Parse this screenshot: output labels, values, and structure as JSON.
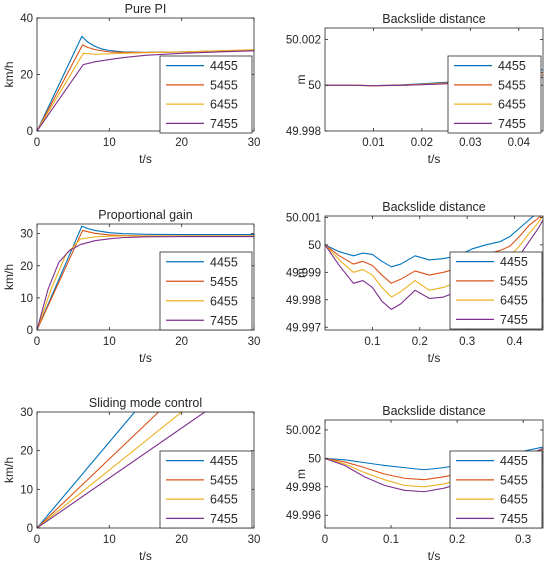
{
  "colors": {
    "4455": "#0072BD",
    "5455": "#D95319",
    "6455": "#EDB120",
    "7455": "#7E2F8E"
  },
  "chart_data": [
    {
      "type": "line",
      "title": "Pure PI",
      "xlabel": "t/s",
      "ylabel": "km/h",
      "xlim": [
        0,
        30
      ],
      "ylim": [
        0,
        40
      ],
      "xticks": [
        0,
        10,
        20,
        30
      ],
      "xtick_labels": [
        "0",
        "10",
        "20",
        "30"
      ],
      "yticks": [
        0,
        20,
        40
      ],
      "ytick_labels": [
        "0",
        "20",
        "40"
      ],
      "legend": "right",
      "series": [
        {
          "name": "4455",
          "x": [
            0,
            6.2,
            7,
            8,
            9,
            10,
            12,
            15,
            20,
            25,
            30
          ],
          "y": [
            0,
            33.5,
            31.5,
            30.0,
            29.0,
            28.5,
            28.0,
            27.8,
            28.0,
            28.3,
            28.6
          ]
        },
        {
          "name": "5455",
          "x": [
            0,
            6.3,
            7,
            8,
            10,
            12,
            15,
            20,
            25,
            30
          ],
          "y": [
            0,
            30.5,
            29.6,
            28.8,
            28.0,
            27.8,
            27.8,
            28.0,
            28.3,
            28.7
          ]
        },
        {
          "name": "6455",
          "x": [
            0,
            6.4,
            8,
            10,
            12,
            15,
            20,
            25,
            30
          ],
          "y": [
            0,
            27.5,
            27.2,
            27.3,
            27.5,
            27.7,
            28.0,
            28.4,
            28.8
          ]
        },
        {
          "name": "7455",
          "x": [
            0,
            6.4,
            8,
            10,
            12,
            15,
            20,
            25,
            30
          ],
          "y": [
            0,
            23.5,
            24.5,
            25.3,
            26.0,
            26.8,
            27.5,
            28.0,
            28.4
          ]
        }
      ]
    },
    {
      "type": "line",
      "title": "Backslide distance",
      "xlabel": "t/s",
      "ylabel": "m",
      "xlim": [
        0,
        0.045
      ],
      "ylim": [
        49.998,
        50.0025
      ],
      "xticks": [
        0.01,
        0.02,
        0.03,
        0.04
      ],
      "xtick_labels": [
        "0.01",
        "0.02",
        "0.03",
        "0.04"
      ],
      "yticks": [
        49.998,
        50,
        50.002
      ],
      "ytick_labels": [
        "49.998",
        "50",
        "50.002"
      ],
      "legend": "right",
      "series": [
        {
          "name": "4455",
          "x": [
            0,
            0.005,
            0.01,
            0.015,
            0.02,
            0.025,
            0.03,
            0.035,
            0.04,
            0.045
          ],
          "y": [
            50.0,
            50.0,
            49.99998,
            50.00001,
            50.00006,
            50.00013,
            50.00022,
            50.00034,
            50.0005,
            50.00068
          ]
        },
        {
          "name": "5455",
          "x": [
            0,
            0.005,
            0.01,
            0.015,
            0.02,
            0.025,
            0.03,
            0.035,
            0.04,
            0.045
          ],
          "y": [
            50.0,
            50.0,
            49.99998,
            50.0,
            50.00004,
            50.0001,
            50.00018,
            50.00028,
            50.00041,
            50.00056
          ]
        },
        {
          "name": "6455",
          "x": [
            0,
            0.005,
            0.01,
            0.015,
            0.02,
            0.025,
            0.03,
            0.035,
            0.04,
            0.045
          ],
          "y": [
            50.0,
            50.0,
            49.99998,
            49.99999,
            50.00003,
            50.00008,
            50.00014,
            50.00022,
            50.00032,
            50.00044
          ]
        },
        {
          "name": "7455",
          "x": [
            0,
            0.005,
            0.01,
            0.015,
            0.02,
            0.025,
            0.03,
            0.035,
            0.04,
            0.045
          ],
          "y": [
            50.0,
            50.0,
            49.99998,
            49.99999,
            50.00002,
            50.00006,
            50.00011,
            50.00017,
            50.00025,
            50.00034
          ]
        }
      ]
    },
    {
      "type": "line",
      "title": "Proportional gain",
      "xlabel": "t/s",
      "ylabel": "km/h",
      "xlim": [
        0,
        30
      ],
      "ylim": [
        0,
        33
      ],
      "xticks": [
        0,
        10,
        20,
        30
      ],
      "xtick_labels": [
        "0",
        "10",
        "20",
        "30"
      ],
      "yticks": [
        0,
        10,
        20,
        30
      ],
      "ytick_labels": [
        "0",
        "10",
        "20",
        "30"
      ],
      "legend": "right",
      "series": [
        {
          "name": "4455",
          "x": [
            0,
            6.2,
            7,
            8,
            10,
            12,
            15,
            20,
            25,
            30
          ],
          "y": [
            0,
            32.3,
            31.6,
            31.0,
            30.3,
            30.0,
            29.8,
            29.7,
            29.7,
            29.7
          ]
        },
        {
          "name": "5455",
          "x": [
            0,
            6.3,
            7,
            8,
            10,
            12,
            15,
            20,
            25,
            30
          ],
          "y": [
            0,
            31.0,
            30.6,
            30.1,
            29.6,
            29.4,
            29.3,
            29.3,
            29.3,
            29.3
          ]
        },
        {
          "name": "6455",
          "x": [
            0,
            2,
            4,
            6,
            8,
            10,
            12,
            15,
            20,
            25,
            30
          ],
          "y": [
            0,
            13.0,
            23.5,
            28.3,
            29.0,
            29.2,
            29.3,
            29.3,
            29.3,
            29.3,
            29.3
          ]
        },
        {
          "name": "7455",
          "x": [
            0,
            1.5,
            3,
            4.5,
            6,
            8,
            10,
            12,
            15,
            20,
            25,
            30
          ],
          "y": [
            0,
            12.5,
            21.0,
            24.8,
            26.6,
            27.8,
            28.4,
            28.8,
            29.0,
            29.1,
            29.1,
            29.1
          ]
        }
      ]
    },
    {
      "type": "line",
      "title": "Backslide distance",
      "xlabel": "t/s",
      "ylabel": "m",
      "xlim": [
        0,
        0.46
      ],
      "ylim": [
        49.9969,
        50.00105
      ],
      "xticks": [
        0.1,
        0.2,
        0.3,
        0.4
      ],
      "xtick_labels": [
        "0.1",
        "0.2",
        "0.3",
        "0.4"
      ],
      "yticks": [
        49.997,
        49.998,
        49.999,
        50,
        50.001
      ],
      "ytick_labels": [
        "49.997",
        "49.998",
        "49.999",
        "50",
        "50.001"
      ],
      "legend": "lower-right",
      "series": [
        {
          "name": "4455",
          "x": [
            0,
            0.03,
            0.06,
            0.08,
            0.1,
            0.12,
            0.14,
            0.16,
            0.19,
            0.22,
            0.25,
            0.28,
            0.31,
            0.34,
            0.37,
            0.39,
            0.41,
            0.43,
            0.44
          ],
          "y": [
            50.0,
            49.99975,
            49.9996,
            49.9997,
            49.99965,
            49.9994,
            49.9992,
            49.9993,
            49.9996,
            49.99945,
            49.9995,
            49.9996,
            49.99985,
            50.0,
            50.00012,
            50.0003,
            50.0006,
            50.0009,
            50.00105
          ]
        },
        {
          "name": "5455",
          "x": [
            0,
            0.03,
            0.06,
            0.08,
            0.1,
            0.12,
            0.14,
            0.16,
            0.19,
            0.22,
            0.25,
            0.28,
            0.31,
            0.34,
            0.37,
            0.39,
            0.41,
            0.43,
            0.445,
            0.455
          ],
          "y": [
            50.0,
            49.9996,
            49.9993,
            49.9994,
            49.99925,
            49.9989,
            49.9986,
            49.99875,
            49.99905,
            49.9989,
            49.999,
            49.99915,
            49.99945,
            49.99965,
            49.9998,
            49.99995,
            50.0003,
            50.0007,
            50.0009,
            50.00105
          ]
        },
        {
          "name": "6455",
          "x": [
            0,
            0.03,
            0.06,
            0.08,
            0.1,
            0.12,
            0.14,
            0.16,
            0.19,
            0.22,
            0.25,
            0.28,
            0.31,
            0.34,
            0.37,
            0.39,
            0.41,
            0.43,
            0.445,
            0.46
          ],
          "y": [
            50.0,
            49.99945,
            49.999,
            49.9991,
            49.9989,
            49.99845,
            49.9981,
            49.9983,
            49.9987,
            49.99835,
            49.99845,
            49.99865,
            49.999,
            49.9992,
            49.9994,
            49.9996,
            49.99995,
            50.0004,
            50.0007,
            50.00105
          ]
        },
        {
          "name": "7455",
          "x": [
            0,
            0.03,
            0.06,
            0.08,
            0.1,
            0.12,
            0.14,
            0.16,
            0.19,
            0.22,
            0.25,
            0.28,
            0.31,
            0.34,
            0.37,
            0.39,
            0.41,
            0.43,
            0.45,
            0.46
          ],
          "y": [
            50.0,
            49.99925,
            49.9986,
            49.9987,
            49.99845,
            49.99795,
            49.99765,
            49.99785,
            49.99835,
            49.99805,
            49.9981,
            49.9983,
            49.99865,
            49.99885,
            49.99905,
            49.99925,
            49.9996,
            50.0001,
            50.0006,
            50.0009
          ]
        }
      ]
    },
    {
      "type": "line",
      "title": "Sliding mode control",
      "xlabel": "t/s",
      "ylabel": "km/h",
      "xlim": [
        0,
        30
      ],
      "ylim": [
        0,
        30
      ],
      "xticks": [
        0,
        10,
        20,
        30
      ],
      "xtick_labels": [
        "0",
        "10",
        "20",
        "30"
      ],
      "yticks": [
        0,
        10,
        20,
        30
      ],
      "ytick_labels": [
        "0",
        "10",
        "20",
        "30"
      ],
      "legend": "right",
      "series": [
        {
          "name": "4455",
          "x": [
            0,
            13.5,
            30
          ],
          "y": [
            0,
            30,
            30
          ]
        },
        {
          "name": "5455",
          "x": [
            0,
            16.8,
            30
          ],
          "y": [
            0,
            30,
            30
          ]
        },
        {
          "name": "6455",
          "x": [
            0,
            20.0,
            30
          ],
          "y": [
            0,
            30,
            30
          ]
        },
        {
          "name": "7455",
          "x": [
            0,
            23.2,
            30
          ],
          "y": [
            0,
            30,
            30
          ]
        }
      ]
    },
    {
      "type": "line",
      "title": "Backslide distance",
      "xlabel": "t/s",
      "ylabel": "m",
      "xlim": [
        0,
        0.33
      ],
      "ylim": [
        49.9951,
        50.0027
      ],
      "xticks": [
        0,
        0.1,
        0.2,
        0.3
      ],
      "xtick_labels": [
        "0",
        "0.1",
        "0.2",
        "0.3"
      ],
      "yticks": [
        49.996,
        49.998,
        50,
        50.002
      ],
      "ytick_labels": [
        "49.996",
        "49.998",
        "50",
        "50.002"
      ],
      "legend": "lower-right",
      "series": [
        {
          "name": "4455",
          "x": [
            0,
            0.03,
            0.06,
            0.09,
            0.12,
            0.15,
            0.18,
            0.21,
            0.24,
            0.27,
            0.3,
            0.33
          ],
          "y": [
            50.0,
            49.9999,
            49.9997,
            49.9995,
            49.99935,
            49.9992,
            49.99935,
            49.9996,
            49.9999,
            50.0002,
            50.0005,
            50.0008
          ]
        },
        {
          "name": "5455",
          "x": [
            0,
            0.03,
            0.06,
            0.09,
            0.12,
            0.15,
            0.18,
            0.21,
            0.24,
            0.27,
            0.3,
            0.33
          ],
          "y": [
            50.0,
            49.99975,
            49.99935,
            49.9989,
            49.9986,
            49.9985,
            49.9987,
            49.999,
            49.9994,
            49.9998,
            50.0002,
            50.0006
          ]
        },
        {
          "name": "6455",
          "x": [
            0,
            0.03,
            0.06,
            0.09,
            0.12,
            0.15,
            0.18,
            0.21,
            0.24,
            0.27,
            0.3,
            0.33
          ],
          "y": [
            50.0,
            49.9996,
            49.999,
            49.9985,
            49.9981,
            49.998,
            49.9982,
            49.9986,
            49.9991,
            49.9996,
            50.0001,
            50.0006
          ]
        },
        {
          "name": "7455",
          "x": [
            0,
            0.03,
            0.06,
            0.09,
            0.12,
            0.15,
            0.18,
            0.21,
            0.24,
            0.27,
            0.3,
            0.33
          ],
          "y": [
            50.0,
            49.9995,
            49.9987,
            49.9981,
            49.99775,
            49.99765,
            49.9979,
            49.9983,
            49.9989,
            49.9995,
            50.0001,
            50.0007
          ]
        }
      ]
    }
  ]
}
